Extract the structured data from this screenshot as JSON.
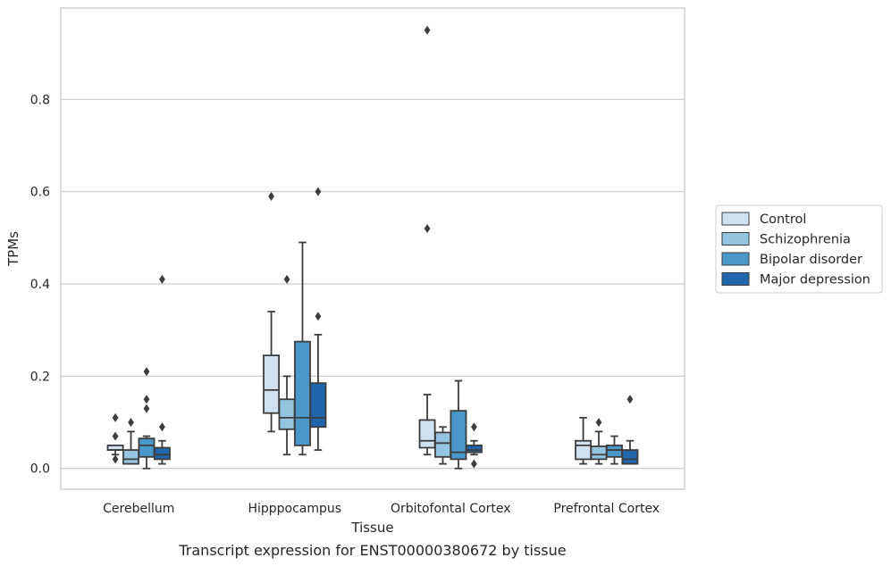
{
  "caption": "Transcript expression for ENST00000380672 by tissue",
  "chart_data": {
    "type": "box",
    "xlabel": "Tissue",
    "ylabel": "TPMs",
    "ylim": [
      -0.045,
      0.998
    ],
    "yticks": [
      0.0,
      0.2,
      0.4,
      0.6,
      0.8
    ],
    "ytick_labels": [
      "0.0",
      "0.2",
      "0.4",
      "0.6",
      "0.8"
    ],
    "grid": "horizontal",
    "legend_position": "right",
    "categories": [
      "Cerebellum",
      "Hipppocampus",
      "Orbitofontal Cortex",
      "Prefrontal Cortex"
    ],
    "series": [
      {
        "name": "Control",
        "color": "#d0e1f2",
        "boxes": [
          {
            "q1": 0.04,
            "median": 0.04,
            "q3": 0.05,
            "whislo": 0.03,
            "whishi": 0.05,
            "fliers": [
              0.11,
              0.07,
              0.02
            ]
          },
          {
            "q1": 0.12,
            "median": 0.17,
            "q3": 0.245,
            "whislo": 0.08,
            "whishi": 0.34,
            "fliers": [
              0.59
            ]
          },
          {
            "q1": 0.045,
            "median": 0.06,
            "q3": 0.105,
            "whislo": 0.03,
            "whishi": 0.16,
            "fliers": [
              0.52,
              0.95
            ]
          },
          {
            "q1": 0.02,
            "median": 0.05,
            "q3": 0.06,
            "whislo": 0.01,
            "whishi": 0.11,
            "fliers": []
          }
        ]
      },
      {
        "name": "Schizophrenia",
        "color": "#94c4df",
        "boxes": [
          {
            "q1": 0.01,
            "median": 0.02,
            "q3": 0.04,
            "whislo": 0.01,
            "whishi": 0.08,
            "fliers": [
              0.1
            ]
          },
          {
            "q1": 0.085,
            "median": 0.11,
            "q3": 0.15,
            "whislo": 0.03,
            "whishi": 0.2,
            "fliers": [
              0.41
            ]
          },
          {
            "q1": 0.025,
            "median": 0.055,
            "q3": 0.078,
            "whislo": 0.01,
            "whishi": 0.09,
            "fliers": []
          },
          {
            "q1": 0.02,
            "median": 0.03,
            "q3": 0.048,
            "whislo": 0.01,
            "whishi": 0.08,
            "fliers": [
              0.1
            ]
          }
        ]
      },
      {
        "name": "Bipolar disorder",
        "color": "#4a98c9",
        "boxes": [
          {
            "q1": 0.025,
            "median": 0.05,
            "q3": 0.065,
            "whislo": 0.0,
            "whishi": 0.07,
            "fliers": [
              0.21,
              0.15,
              0.13
            ]
          },
          {
            "q1": 0.05,
            "median": 0.11,
            "q3": 0.275,
            "whislo": 0.03,
            "whishi": 0.49,
            "fliers": []
          },
          {
            "q1": 0.02,
            "median": 0.035,
            "q3": 0.125,
            "whislo": 0.0,
            "whishi": 0.19,
            "fliers": []
          },
          {
            "q1": 0.025,
            "median": 0.04,
            "q3": 0.05,
            "whislo": 0.01,
            "whishi": 0.07,
            "fliers": []
          }
        ]
      },
      {
        "name": "Major depression",
        "color": "#2166ac",
        "boxes": [
          {
            "q1": 0.02,
            "median": 0.03,
            "q3": 0.045,
            "whislo": 0.01,
            "whishi": 0.06,
            "fliers": [
              0.09,
              0.41
            ]
          },
          {
            "q1": 0.09,
            "median": 0.11,
            "q3": 0.185,
            "whislo": 0.04,
            "whishi": 0.29,
            "fliers": [
              0.33,
              0.6
            ]
          },
          {
            "q1": 0.035,
            "median": 0.04,
            "q3": 0.05,
            "whislo": 0.03,
            "whishi": 0.06,
            "fliers": [
              0.09,
              0.01
            ]
          },
          {
            "q1": 0.01,
            "median": 0.02,
            "q3": 0.04,
            "whislo": 0.01,
            "whishi": 0.06,
            "fliers": [
              0.15
            ]
          }
        ]
      }
    ]
  }
}
